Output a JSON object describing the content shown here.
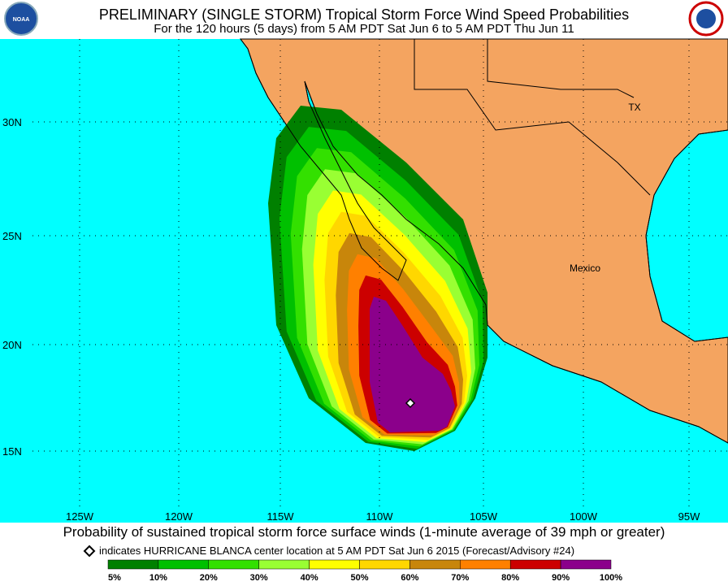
{
  "header": {
    "title": "PRELIMINARY (SINGLE STORM) Tropical Storm Force Wind Speed Probabilities",
    "subtitle": "For the 120 hours (5 days) from 5 AM PDT Sat Jun 6 to 5 AM PDT Thu Jun 11",
    "logo": "NOAA"
  },
  "map": {
    "lat_labels": [
      "30N",
      "25N",
      "20N",
      "15N"
    ],
    "lon_labels": [
      "125W",
      "120W",
      "115W",
      "110W",
      "105W",
      "100W",
      "95W"
    ],
    "place_labels": [
      "TX",
      "Mexico"
    ]
  },
  "caption": "Probability of sustained tropical storm force surface winds (1-minute average of 39 mph or greater)",
  "storm_note": "indicates HURRICANE BLANCA center location at 5 AM PDT Sat Jun 6 2015 (Forecast/Advisory #24)",
  "legend": {
    "labels": [
      "5%",
      "10%",
      "20%",
      "30%",
      "40%",
      "50%",
      "60%",
      "70%",
      "80%",
      "90%",
      "100%"
    ],
    "colors": [
      "#008000",
      "#00c000",
      "#33e000",
      "#99ff33",
      "#ffff00",
      "#ffd700",
      "#c8860b",
      "#ff8000",
      "#cc0000",
      "#800000",
      "#8b008b"
    ]
  }
}
